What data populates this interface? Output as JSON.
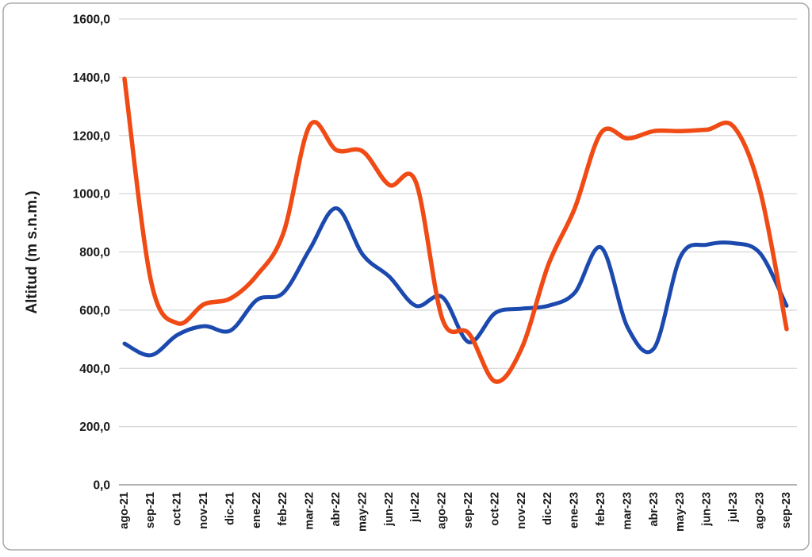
{
  "frame": {
    "background": "#ffffff",
    "border_color": "#ababab",
    "gridline_color": "#d6d6d6",
    "axis_line_color": "#a8a8a8",
    "text_color": "#1a1a1a"
  },
  "chart_data": {
    "type": "line",
    "title": "",
    "xlabel": "",
    "ylabel": "Altitud (m s.n.m.)",
    "ylim": [
      0,
      1600
    ],
    "y_tick_step": 200,
    "y_tick_values": [
      0,
      200,
      400,
      600,
      800,
      1000,
      1200,
      1400,
      1600
    ],
    "y_tick_labels": [
      "0,0",
      "200,0",
      "400,0",
      "600,0",
      "800,0",
      "1000,0",
      "1200,0",
      "1400,0",
      "1600,0"
    ],
    "grid": "horizontal-only",
    "legend_position": "none",
    "line_style": "smooth",
    "categories": [
      "ago-21",
      "sep-21",
      "oct-21",
      "nov-21",
      "dic-21",
      "ene-22",
      "feb-22",
      "mar-22",
      "abr-22",
      "may-22",
      "jun-22",
      "jul-22",
      "ago-22",
      "sep-22",
      "oct-22",
      "nov-22",
      "dic-22",
      "ene-23",
      "feb-23",
      "mar-23",
      "abr-23",
      "may-23",
      "jun-23",
      "jul-23",
      "ago-23",
      "sep-23"
    ],
    "series": [
      {
        "name": "blue-line",
        "color": "#1b49ae",
        "stroke_width": 5,
        "values": [
          485,
          445,
          515,
          545,
          530,
          635,
          660,
          810,
          950,
          790,
          715,
          615,
          645,
          490,
          590,
          605,
          615,
          660,
          815,
          540,
          470,
          785,
          825,
          830,
          795,
          615
        ]
      },
      {
        "name": "orange-line",
        "color": "#f04a15",
        "stroke_width": 5.5,
        "values": [
          1395,
          700,
          555,
          620,
          640,
          720,
          865,
          1235,
          1150,
          1145,
          1030,
          1040,
          570,
          520,
          355,
          470,
          755,
          950,
          1210,
          1190,
          1215,
          1215,
          1220,
          1230,
          1010,
          535
        ]
      }
    ]
  }
}
